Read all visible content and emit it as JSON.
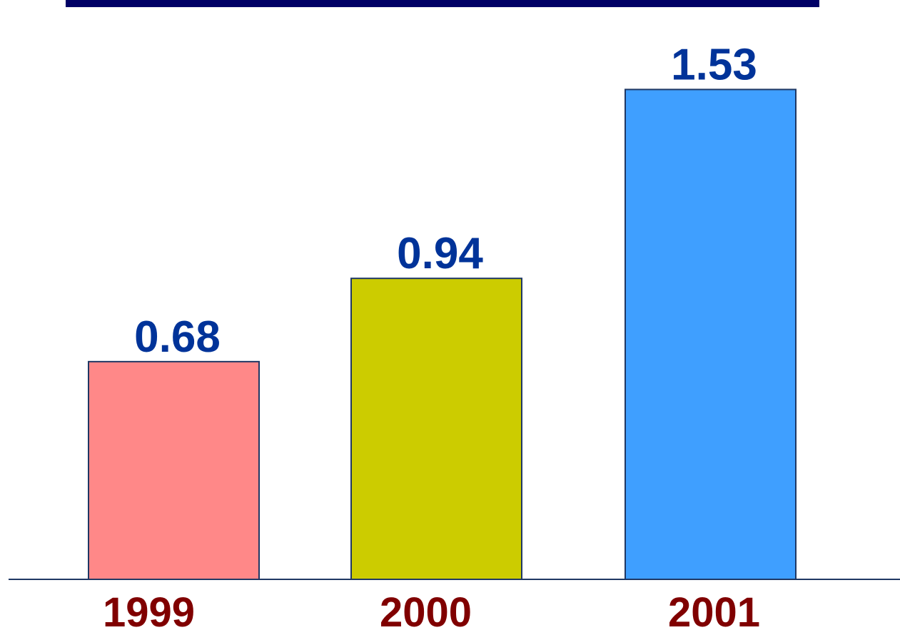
{
  "chart_data": {
    "type": "bar",
    "categories": [
      "1999",
      "2000",
      "2001"
    ],
    "values": [
      0.68,
      0.94,
      1.53
    ],
    "colors": [
      "#ff8888",
      "#cccc00",
      "#3f9fff"
    ],
    "ylim": [
      0,
      1.6
    ]
  }
}
